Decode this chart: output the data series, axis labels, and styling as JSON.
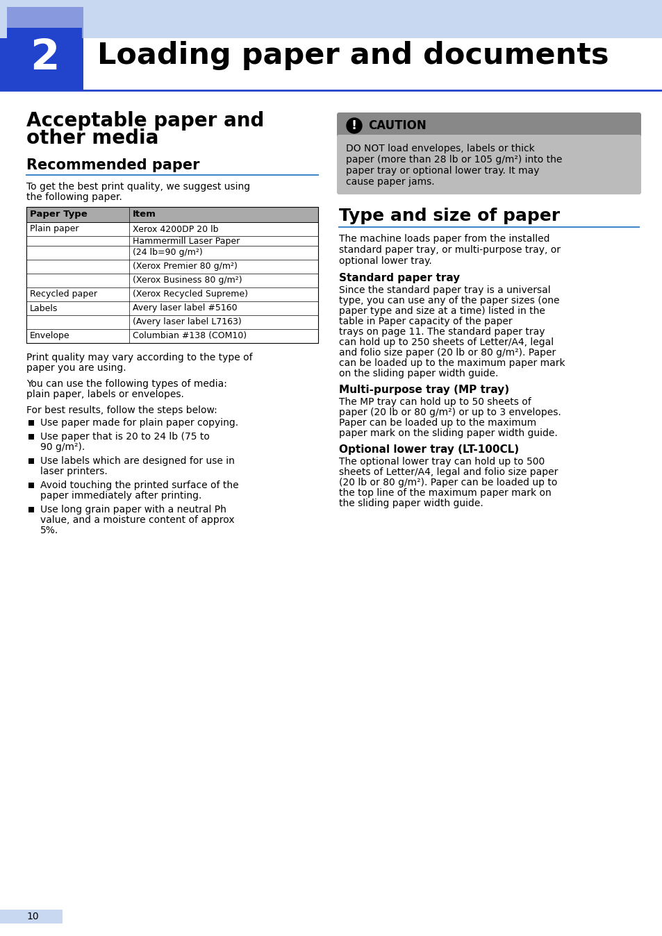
{
  "page_bg": "#ffffff",
  "header_light_blue": "#c8d8f0",
  "header_dark_blue": "#2244cc",
  "header_medium_blue": "#8899dd",
  "chapter_num": "2",
  "chapter_title": "Loading paper and documents",
  "section1_line1": "Acceptable paper and",
  "section1_line2": "other media",
  "section2_title": "Recommended paper",
  "intro_line1": "To get the best print quality, we suggest using",
  "intro_line2": "the following paper.",
  "table_header_bg": "#aaaaaa",
  "table_col1_header": "Paper Type",
  "table_col2_header": "Item",
  "caution_header_bg": "#888888",
  "caution_text_bg": "#bbbbbb",
  "caution_title": "CAUTION",
  "caution_lines": [
    "DO NOT load envelopes, labels or thick",
    "paper (more than 28 lb or 105 g/m²) into the",
    "paper tray or optional lower tray. It may",
    "cause paper jams."
  ],
  "right_section_title": "Type and size of paper",
  "blue_line_color": "#4488cc",
  "right_intro_lines": [
    "The machine loads paper from the installed",
    "standard paper tray, or multi-purpose tray, or",
    "optional lower tray."
  ],
  "sub1_title": "Standard paper tray",
  "sub1_lines": [
    "Since the standard paper tray is a universal",
    "type, you can use any of the paper sizes (one",
    "paper type and size at a time) listed in the",
    "table in Paper capacity of the paper",
    "trays on page 11. The standard paper tray",
    "can hold up to 250 sheets of Letter/A4, legal",
    "and folio size paper (20 lb or 80 g/m²). Paper",
    "can be loaded up to the maximum paper mark",
    "on the sliding paper width guide."
  ],
  "sub2_title": "Multi-purpose tray (MP tray)",
  "sub2_lines": [
    "The MP tray can hold up to 50 sheets of",
    "paper (20 lb or 80 g/m²) or up to 3 envelopes.",
    "Paper can be loaded up to the maximum",
    "paper mark on the sliding paper width guide."
  ],
  "sub3_title": "Optional lower tray (LT-100CL)",
  "sub3_lines": [
    "The optional lower tray can hold up to 500",
    "sheets of Letter/A4, legal and folio size paper",
    "(20 lb or 80 g/m²). Paper can be loaded up to",
    "the top line of the maximum paper mark on",
    "the sliding paper width guide."
  ],
  "footer_num": "10",
  "footer_bar_color": "#c8d8f0",
  "para1_lines": [
    "Print quality may vary according to the type of",
    "paper you are using."
  ],
  "para2_lines": [
    "You can use the following types of media:",
    "plain paper, labels or envelopes."
  ],
  "para3": "For best results, follow the steps below:",
  "bullet_groups": [
    [
      "Use paper made for plain paper copying."
    ],
    [
      "Use paper that is 20 to 24 lb (75 to",
      "90 g/m²)."
    ],
    [
      "Use labels which are designed for use in",
      "laser printers."
    ],
    [
      "Avoid touching the printed surface of the",
      "paper immediately after printing."
    ],
    [
      "Use long grain paper with a neutral Ph",
      "value, and a moisture content of approx",
      "5%."
    ]
  ]
}
